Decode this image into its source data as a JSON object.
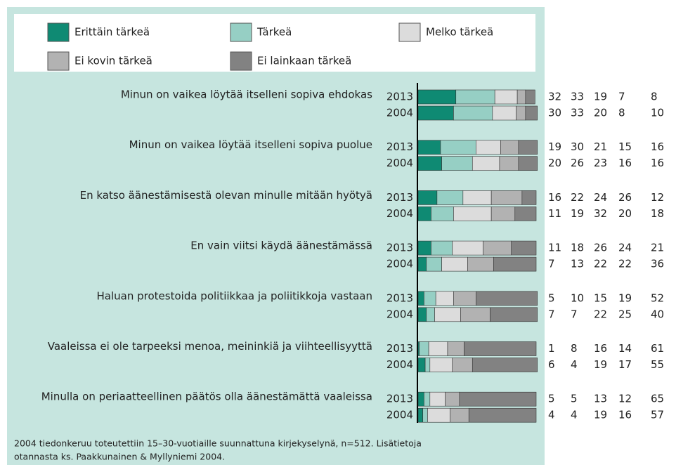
{
  "chart_data": {
    "type": "stacked-bar-horizontal",
    "groups": [
      "Minun on vaikea löytää itselleni sopiva ehdokas",
      "Minun on vaikea löytää itselleni sopiva puolue",
      "En katso äänestämisestä olevan minulle mitään hyötyä",
      "En vain viitsi käydä äänestämässä",
      "Haluan protestoida politiikkaa ja poliitikkoja vastaan",
      "Vaaleissa ei ole tarpeeksi menoa, meininkiä ja viihteellisyyttä",
      "Minulla on periaatteellinen päätös olla äänestämättä vaaleissa"
    ],
    "categories": [
      "2013",
      "2004",
      "2013",
      "2004",
      "2013",
      "2004",
      "2013",
      "2004",
      "2013",
      "2004",
      "2013",
      "2004",
      "2013",
      "2004"
    ],
    "series": [
      {
        "name": "Erittäin tärkeä",
        "color": "#0f8a73",
        "values": [
          32,
          30,
          19,
          20,
          16,
          11,
          11,
          7,
          5,
          7,
          1,
          6,
          5,
          4
        ]
      },
      {
        "name": "Tärkeä",
        "color": "#96cfc4",
        "values": [
          33,
          33,
          30,
          26,
          22,
          19,
          18,
          13,
          10,
          7,
          8,
          4,
          5,
          4
        ]
      },
      {
        "name": "Melko tärkeä",
        "color": "#dcdcdc",
        "values": [
          19,
          20,
          21,
          23,
          24,
          32,
          26,
          22,
          15,
          22,
          16,
          19,
          13,
          19
        ]
      },
      {
        "name": "Ei kovin tärkeä",
        "color": "#b2b2b2",
        "values": [
          7,
          8,
          15,
          16,
          26,
          20,
          24,
          22,
          19,
          25,
          14,
          17,
          12,
          16
        ]
      },
      {
        "name": "Ei lainkaan tärkeä",
        "color": "#828282",
        "values": [
          8,
          10,
          16,
          16,
          12,
          18,
          21,
          36,
          52,
          40,
          61,
          55,
          65,
          57
        ]
      }
    ],
    "xlim": [
      0,
      100
    ],
    "footnote": [
      "2004 tiedonkeruu toteutettiin 15–30-vuotiaille suunnattuna kirjekyselynä, n=512. Lisätietoja",
      "otannasta ks. Paakkunainen & Myllyniemi 2004."
    ]
  }
}
